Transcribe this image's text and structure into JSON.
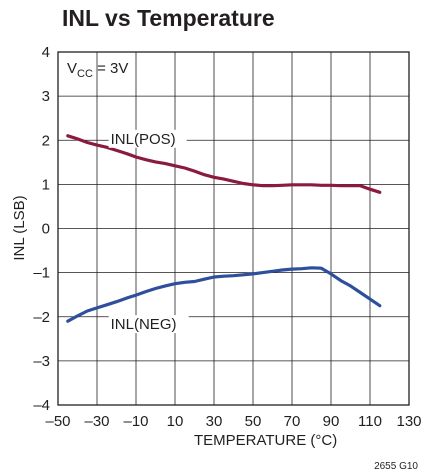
{
  "chart_data": {
    "type": "line",
    "title": "INL vs Temperature",
    "xlabel": "TEMPERATURE (°C)",
    "ylabel": "INL (LSB)",
    "xlim": [
      -50,
      130
    ],
    "ylim": [
      -4,
      4
    ],
    "xticks": [
      "–50",
      "–30",
      "–10",
      "10",
      "30",
      "50",
      "70",
      "90",
      "110",
      "130"
    ],
    "yticks": [
      "4",
      "3",
      "2",
      "1",
      "0",
      "–1",
      "–2",
      "–3",
      "–4"
    ],
    "grid": true,
    "annotation": {
      "prefix": "V",
      "sub": "CC",
      "suffix": " = 3V"
    },
    "figure_id": "2655 G10",
    "series": [
      {
        "name": "INL(POS)",
        "color": "#8b1b3d",
        "x": [
          -45,
          -40,
          -35,
          -30,
          -25,
          -20,
          -15,
          -10,
          -5,
          0,
          5,
          10,
          15,
          20,
          25,
          30,
          35,
          40,
          45,
          50,
          55,
          60,
          65,
          70,
          75,
          80,
          85,
          90,
          95,
          100,
          105,
          110,
          115
        ],
        "y": [
          2.1,
          2.03,
          1.95,
          1.89,
          1.84,
          1.77,
          1.7,
          1.62,
          1.56,
          1.51,
          1.47,
          1.42,
          1.37,
          1.3,
          1.22,
          1.16,
          1.12,
          1.07,
          1.02,
          0.99,
          0.97,
          0.97,
          0.98,
          0.99,
          0.99,
          0.99,
          0.98,
          0.98,
          0.97,
          0.97,
          0.97,
          0.89,
          0.82
        ]
      },
      {
        "name": "INL(NEG)",
        "color": "#2e4f9c",
        "x": [
          -45,
          -40,
          -35,
          -30,
          -25,
          -20,
          -15,
          -10,
          -5,
          0,
          5,
          10,
          15,
          20,
          25,
          30,
          35,
          40,
          45,
          50,
          55,
          60,
          65,
          70,
          75,
          80,
          85,
          90,
          95,
          100,
          105,
          110,
          115
        ],
        "y": [
          -2.1,
          -1.98,
          -1.87,
          -1.8,
          -1.73,
          -1.66,
          -1.58,
          -1.51,
          -1.43,
          -1.36,
          -1.3,
          -1.25,
          -1.22,
          -1.2,
          -1.15,
          -1.1,
          -1.08,
          -1.07,
          -1.05,
          -1.03,
          -1.0,
          -0.97,
          -0.94,
          -0.92,
          -0.91,
          -0.89,
          -0.9,
          -1.03,
          -1.18,
          -1.3,
          -1.45,
          -1.6,
          -1.75
        ]
      }
    ]
  }
}
